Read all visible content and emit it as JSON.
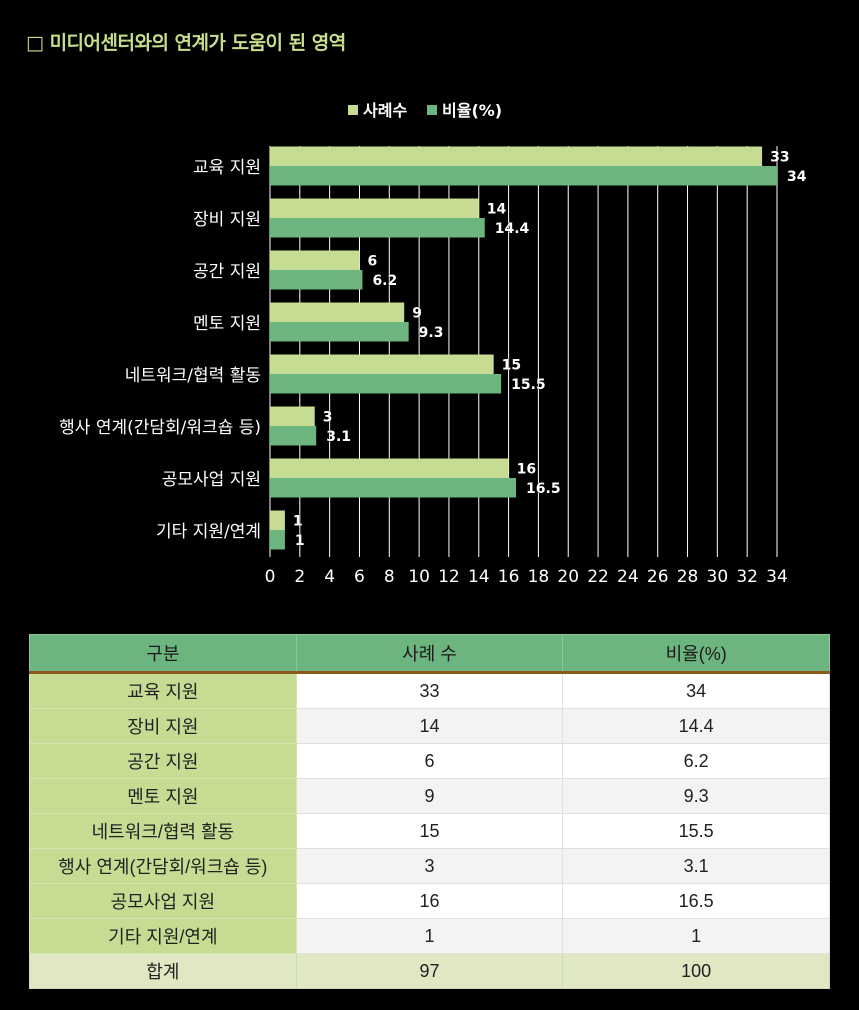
{
  "title": "□ 미디어센터와의 연계가 도움이 된 영역",
  "chart_data": {
    "type": "bar",
    "orientation": "horizontal",
    "categories": [
      "교육 지원",
      "장비 지원",
      "공간 지원",
      "멘토 지원",
      "네트워크/협력 활동",
      "행사 연계(간담회/워크숍 등)",
      "공모사업 지원",
      "기타 지원/연계"
    ],
    "series": [
      {
        "name": "사례수",
        "values": [
          33,
          14,
          6,
          9,
          15,
          3,
          16,
          1
        ],
        "color": "#c6dc93"
      },
      {
        "name": "비율(%)",
        "values": [
          34,
          14.4,
          6.2,
          9.3,
          15.5,
          3.1,
          16.5,
          1
        ],
        "color": "#6db57e"
      }
    ],
    "x_ticks": [
      0,
      2,
      4,
      6,
      8,
      10,
      12,
      14,
      16,
      18,
      20,
      22,
      24,
      26,
      28,
      30,
      32,
      34
    ],
    "xlim": [
      0,
      34
    ],
    "grid": "vertical",
    "legend_position": "top"
  },
  "table": {
    "headers": [
      "구분",
      "사례 수",
      "비율(%)"
    ],
    "rows": [
      [
        "교육 지원",
        "33",
        "34"
      ],
      [
        "장비 지원",
        "14",
        "14.4"
      ],
      [
        "공간 지원",
        "6",
        "6.2"
      ],
      [
        "멘토 지원",
        "9",
        "9.3"
      ],
      [
        "네트워크/협력 활동",
        "15",
        "15.5"
      ],
      [
        "행사 연계(간담회/워크숍 등)",
        "3",
        "3.1"
      ],
      [
        "공모사업 지원",
        "16",
        "16.5"
      ],
      [
        "기타 지원/연계",
        "1",
        "1"
      ]
    ],
    "total": [
      "합계",
      "97",
      "100"
    ]
  },
  "colors": {
    "background": "#000000",
    "title": "#c8de8c",
    "header_border": "#8a5a1c"
  }
}
